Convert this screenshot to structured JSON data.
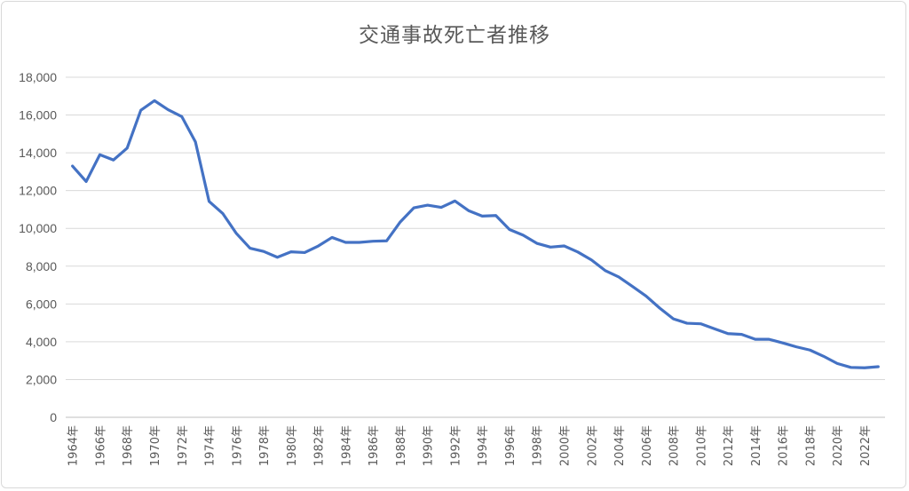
{
  "chart_data": {
    "type": "line",
    "title": "交通事故死亡者推移",
    "xlabel": "",
    "ylabel": "",
    "ylim": [
      0,
      18000
    ],
    "yticks": [
      "0",
      "2,000",
      "4,000",
      "6,000",
      "8,000",
      "10,000",
      "12,000",
      "14,000",
      "16,000",
      "18,000"
    ],
    "grid": true,
    "line_color": "#4472c4",
    "categories": [
      "1964年",
      "1965年",
      "1966年",
      "1967年",
      "1968年",
      "1969年",
      "1970年",
      "1971年",
      "1972年",
      "1973年",
      "1974年",
      "1975年",
      "1976年",
      "1977年",
      "1978年",
      "1979年",
      "1980年",
      "1981年",
      "1982年",
      "1983年",
      "1984年",
      "1985年",
      "1986年",
      "1987年",
      "1988年",
      "1989年",
      "1990年",
      "1991年",
      "1992年",
      "1993年",
      "1994年",
      "1995年",
      "1996年",
      "1997年",
      "1998年",
      "1999年",
      "2000年",
      "2001年",
      "2002年",
      "2003年",
      "2004年",
      "2005年",
      "2006年",
      "2007年",
      "2008年",
      "2009年",
      "2010年",
      "2011年",
      "2012年",
      "2013年",
      "2014年",
      "2015年",
      "2016年",
      "2017年",
      "2018年",
      "2019年",
      "2020年",
      "2021年",
      "2022年",
      "2023年"
    ],
    "tick_labels": [
      "1964年",
      "1966年",
      "1968年",
      "1970年",
      "1972年",
      "1974年",
      "1976年",
      "1978年",
      "1980年",
      "1982年",
      "1984年",
      "1986年",
      "1988年",
      "1990年",
      "1992年",
      "1994年",
      "1996年",
      "1998年",
      "2000年",
      "2002年",
      "2004年",
      "2006年",
      "2008年",
      "2010年",
      "2012年",
      "2014年",
      "2016年",
      "2018年",
      "2020年",
      "2022年"
    ],
    "values": [
      13300,
      12480,
      13900,
      13620,
      14250,
      16250,
      16760,
      16280,
      15920,
      14580,
      11430,
      10790,
      9730,
      8950,
      8780,
      8470,
      8760,
      8720,
      9070,
      9520,
      9260,
      9260,
      9320,
      9340,
      10340,
      11090,
      11230,
      11110,
      11450,
      10940,
      10650,
      10680,
      9940,
      9640,
      9210,
      9010,
      9070,
      8750,
      8330,
      7770,
      7430,
      6930,
      6420,
      5780,
      5210,
      4980,
      4950,
      4690,
      4430,
      4390,
      4130,
      4130,
      3940,
      3730,
      3560,
      3230,
      2850,
      2640,
      2620,
      2680
    ]
  }
}
